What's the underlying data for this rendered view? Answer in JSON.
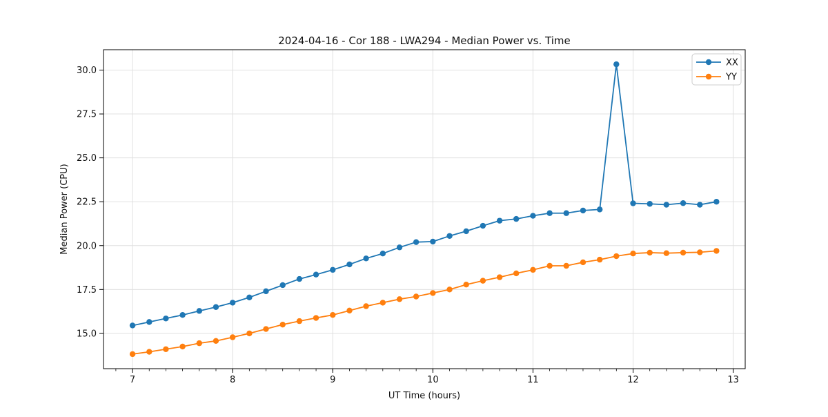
{
  "chart_data": {
    "type": "line",
    "title": "2024-04-16 - Cor 188 - LWA294 - Median Power vs. Time",
    "xlabel": "UT Time (hours)",
    "ylabel": "Median Power (CPU)",
    "xlim": [
      6.71,
      13.12
    ],
    "ylim": [
      12.99,
      31.16
    ],
    "x_major_ticks": [
      7,
      8,
      9,
      10,
      11,
      12,
      13
    ],
    "x_minor_tick_step_hours": 0.166667,
    "y_major_ticks": [
      15.0,
      17.5,
      20.0,
      22.5,
      25.0,
      27.5,
      30.0
    ],
    "grid": true,
    "legend_position": "upper right",
    "x": [
      7.0,
      7.167,
      7.333,
      7.5,
      7.667,
      7.833,
      8.0,
      8.167,
      8.333,
      8.5,
      8.667,
      8.833,
      9.0,
      9.167,
      9.333,
      9.5,
      9.667,
      9.833,
      10.0,
      10.167,
      10.333,
      10.5,
      10.667,
      10.833,
      11.0,
      11.167,
      11.333,
      11.5,
      11.667,
      11.833,
      12.0,
      12.167,
      12.333,
      12.5,
      12.667,
      12.833
    ],
    "series": [
      {
        "name": "XX",
        "color": "#1f77b4",
        "values": [
          15.45,
          15.65,
          15.85,
          16.05,
          16.28,
          16.5,
          16.75,
          17.05,
          17.4,
          17.75,
          18.1,
          18.35,
          18.62,
          18.93,
          19.27,
          19.55,
          19.9,
          20.2,
          20.23,
          20.55,
          20.82,
          21.13,
          21.42,
          21.52,
          21.7,
          21.85,
          21.85,
          22.0,
          22.06,
          30.33,
          22.41,
          22.38,
          22.33,
          22.42,
          22.33,
          22.5
        ]
      },
      {
        "name": "YY",
        "color": "#ff7f0e",
        "values": [
          13.82,
          13.95,
          14.1,
          14.25,
          14.44,
          14.57,
          14.78,
          15.0,
          15.25,
          15.5,
          15.7,
          15.88,
          16.05,
          16.3,
          16.55,
          16.75,
          16.95,
          17.1,
          17.3,
          17.5,
          17.78,
          18.0,
          18.2,
          18.42,
          18.62,
          18.85,
          18.85,
          19.05,
          19.2,
          19.4,
          19.55,
          19.6,
          19.57,
          19.6,
          19.62,
          19.7
        ]
      }
    ],
    "colors": {
      "grid": "#e0e0e0",
      "spine": "#000000",
      "legend_border": "#cccccc",
      "background": "#ffffff"
    }
  }
}
